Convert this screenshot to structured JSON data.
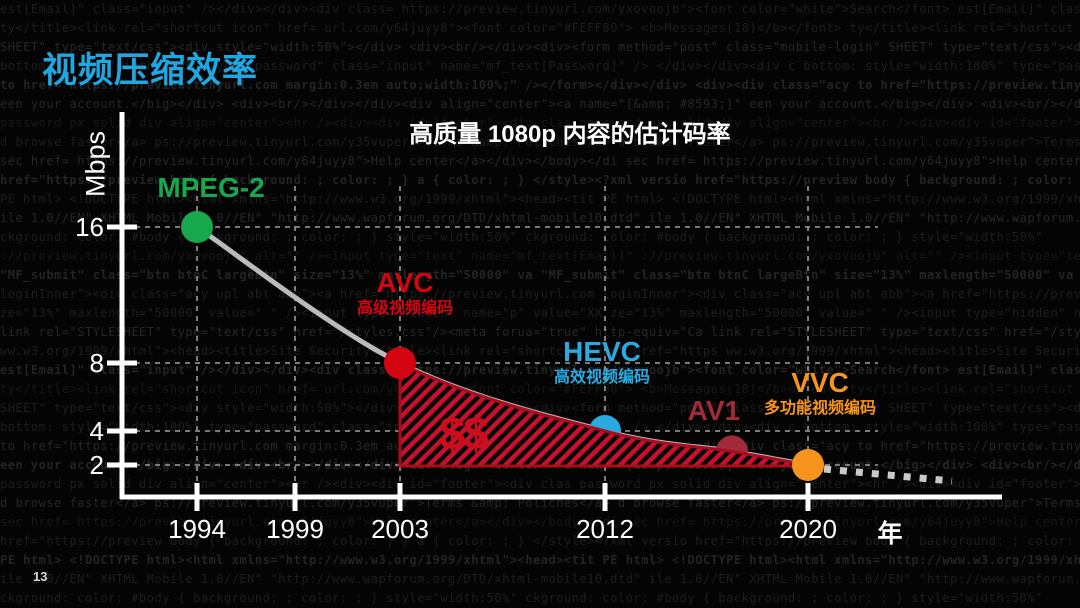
{
  "slide": {
    "title": "视频压缩效率",
    "page_number": "13"
  },
  "colors": {
    "slide_title": "#1EA7E1",
    "axis": "#FFFFFF",
    "grid": "#8A8A8A",
    "curve": "#BBBBBB",
    "dotted_projection": "#C9C9C9",
    "hatch_red": "#C8102E",
    "hatch_border": "#A80D1E",
    "annotation_red": "#CC0E1C",
    "text": "#FFFFFF"
  },
  "chart": {
    "title": "高质量 1080p 内容的估计码率",
    "y_axis_label": "Mbps",
    "x_axis_unit": "年",
    "cost_annotation": "$$"
  },
  "chart_data": {
    "type": "scatter",
    "title": "高质量 1080p 内容的估计码率",
    "xlabel": "年",
    "ylabel": "Mbps",
    "x_ticks": [
      1994,
      1999,
      2003,
      2012,
      2020
    ],
    "y_ticks": [
      16,
      8,
      4,
      2
    ],
    "xlim": [
      1990,
      2028
    ],
    "ylim": [
      0,
      18
    ],
    "grid": true,
    "legend_position": "none",
    "points": [
      {
        "label": "MPEG-2",
        "label_zh": "",
        "year": 1994,
        "mbps": 16,
        "color": "#17A84E"
      },
      {
        "label": "AVC",
        "label_zh": "高级视频编码",
        "year": 2003,
        "mbps": 8,
        "color": "#D40511"
      },
      {
        "label": "HEVC",
        "label_zh": "高效视频编码",
        "year": 2012,
        "mbps": 4,
        "color": "#29ABE2"
      },
      {
        "label": "AV1",
        "label_zh": "",
        "year": 2017,
        "mbps": 2.8,
        "color": "#A12B38"
      },
      {
        "label": "VVC",
        "label_zh": "多功能视频编码",
        "year": 2020,
        "mbps": 2,
        "color": "#F7941E"
      }
    ],
    "curve": "smooth gray decay line through all points, dotted gray projection continuing past 2020",
    "shaded_area": {
      "label": "$$",
      "from_year": 2003,
      "to_year": 2020,
      "between": "decay curve and the 2 Mbps level",
      "style": "red diagonal hatching"
    }
  },
  "background": {
    "code_lines": [
      "est[Email]\" class=\"input\" /></div></div><div class= https://preview.tinyurl.com/yxovoojb\"><font color=\"white\">Search</font>",
      "ty</title><link rel=\"shortcut icon\" href= url.com/y64juyy8\"><font color=\"#FEFF80\"> <b>Messages(18)</b></font>",
      "SHEET\" type=\"text/css\"><div style=\"width:50%\"></div> <div><br/></div><div><form method=\"post\" class=\"mobile-login\"",
      "bottom: style=\"width:100%\" type=\"password\" class=\"input\" name=\"mf_text[Password]\" /> </div></div><div c",
      "to href=\"https://preview.tinyurl.com margin:0.3em auto;width:100%;\" /></form></div></div> <div><div class=\"acy",
      "een your account.</big></div> <div><br/></div></div><div align=\"center\"><a name=\"[&amp; #8593;]\"",
      "password px solid div align=\"center\"><hr /><div><div id=\"footer\"><div clas",
      "d browse faster</a> ps://preview.tinyurl.com/y35vuper\">Terms &amp; Poliches</a>",
      "sec  href= https://preview.tinyurl.com/y64juyy8\">Help center</a></div></body></di",
      "href=\"https://preview body { background: ; color: ; } a { color: ; } </style><?xml versio",
      "PE html> <!DOCTYPE html><html xmlns=\"http://www.w3.org/1999/xhtml\"><head><tit",
      "ile 1.0//EN\" XHTML Mobile 1.0//EN\" \"http://www.wapforum.org/DTD/xhtml-mobile10.dtd\"",
      "ckground: color: #body { background: ; color: ; } style=\"width:50%\"",
      "://preview.tinyurl.com/yxovoojb\" alt=\"\" /><input type=\"text\" name=\"mf_text[Email]\"",
      "\"MF_submit\" class=\"btn btnC largeBtn\" size=\"13%\" maxlength=\"50000\" va",
      "loginInner\"><div class=\"acy upl abt abb\"><a href=\"https://preview.tinyurl.com",
      "ze=\"13%\" maxlength=\"50000\" value=\" \" /><input type=\"hidden\" name=\"p\" value=\"XX",
      "link rel=\"STYLESHEET\" type=\"text/css\" href=\"/styles.css\"/><meta forua=\"true\" http-equiv=\"Ca",
      "ww.w3.org/1999/xhtml\"><head><title>Site Security</title><link rel=\"shortcut icon\" href=\"https"
    ]
  }
}
